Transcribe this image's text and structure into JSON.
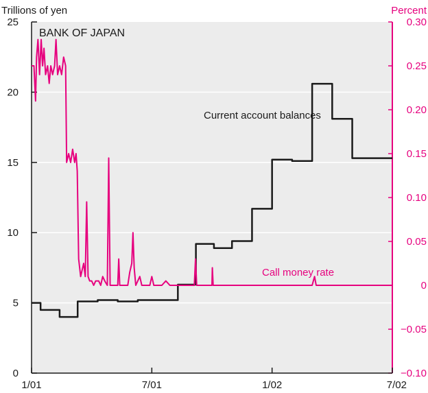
{
  "chart_data": {
    "type": "line",
    "title": "BANK OF JAPAN",
    "left_axis": {
      "label": "Trillions of yen",
      "ylim": [
        0,
        25
      ],
      "ticks": [
        "0",
        "5",
        "10",
        "15",
        "20",
        "25"
      ]
    },
    "right_axis": {
      "label": "Percent",
      "ylim": [
        -0.1,
        0.3
      ],
      "ticks": [
        "−0.10",
        "−0.05",
        "0",
        "0.05",
        "0.10",
        "0.15",
        "0.20",
        "0.25",
        "0.30"
      ]
    },
    "x_ticks": [
      "1/01",
      "7/01",
      "1/02",
      "7/02"
    ],
    "x_range_months": [
      0,
      18
    ],
    "grid": "horizontal",
    "series": [
      {
        "name": "Current account balances",
        "axis": "left",
        "color": "#1a1a1a",
        "step": true,
        "points": [
          [
            0.0,
            5.0
          ],
          [
            0.45,
            4.5
          ],
          [
            1.4,
            4.0
          ],
          [
            2.3,
            5.1
          ],
          [
            3.3,
            5.2
          ],
          [
            4.3,
            5.1
          ],
          [
            5.3,
            5.2
          ],
          [
            6.3,
            5.2
          ],
          [
            7.3,
            6.3
          ],
          [
            8.2,
            9.2
          ],
          [
            9.1,
            8.9
          ],
          [
            10.0,
            9.4
          ],
          [
            11.0,
            11.7
          ],
          [
            12.0,
            15.2
          ],
          [
            13.0,
            15.1
          ],
          [
            14.0,
            20.6
          ],
          [
            15.0,
            18.1
          ],
          [
            16.0,
            15.3
          ],
          [
            17.0,
            15.3
          ]
        ]
      },
      {
        "name": "Call money rate",
        "axis": "right",
        "color": "#e6007e",
        "step": false,
        "points": [
          [
            0.0,
            0.25
          ],
          [
            0.12,
            0.25
          ],
          [
            0.2,
            0.21
          ],
          [
            0.25,
            0.26
          ],
          [
            0.32,
            0.28
          ],
          [
            0.4,
            0.24
          ],
          [
            0.48,
            0.28
          ],
          [
            0.55,
            0.25
          ],
          [
            0.62,
            0.27
          ],
          [
            0.7,
            0.24
          ],
          [
            0.8,
            0.25
          ],
          [
            0.88,
            0.23
          ],
          [
            0.96,
            0.25
          ],
          [
            1.05,
            0.24
          ],
          [
            1.15,
            0.25
          ],
          [
            1.22,
            0.28
          ],
          [
            1.3,
            0.24
          ],
          [
            1.4,
            0.25
          ],
          [
            1.5,
            0.24
          ],
          [
            1.6,
            0.26
          ],
          [
            1.7,
            0.25
          ],
          [
            1.75,
            0.14
          ],
          [
            1.85,
            0.15
          ],
          [
            1.95,
            0.14
          ],
          [
            2.05,
            0.155
          ],
          [
            2.15,
            0.14
          ],
          [
            2.22,
            0.15
          ],
          [
            2.28,
            0.13
          ],
          [
            2.35,
            0.03
          ],
          [
            2.45,
            0.01
          ],
          [
            2.6,
            0.025
          ],
          [
            2.68,
            0.01
          ],
          [
            2.75,
            0.095
          ],
          [
            2.82,
            0.01
          ],
          [
            2.9,
            0.005
          ],
          [
            3.0,
            0.005
          ],
          [
            3.1,
            0.0
          ],
          [
            3.2,
            0.005
          ],
          [
            3.35,
            0.005
          ],
          [
            3.45,
            0.0
          ],
          [
            3.55,
            0.01
          ],
          [
            3.65,
            0.005
          ],
          [
            3.78,
            0.0
          ],
          [
            3.85,
            0.145
          ],
          [
            3.92,
            0.0
          ],
          [
            4.1,
            0.0
          ],
          [
            4.3,
            0.0
          ],
          [
            4.35,
            0.03
          ],
          [
            4.4,
            0.0
          ],
          [
            4.8,
            0.0
          ],
          [
            4.9,
            0.015
          ],
          [
            5.0,
            0.025
          ],
          [
            5.06,
            0.06
          ],
          [
            5.12,
            0.02
          ],
          [
            5.2,
            0.0
          ],
          [
            5.4,
            0.01
          ],
          [
            5.5,
            0.0
          ],
          [
            5.9,
            0.0
          ],
          [
            6.0,
            0.01
          ],
          [
            6.1,
            0.0
          ],
          [
            6.5,
            0.0
          ],
          [
            6.7,
            0.005
          ],
          [
            6.9,
            0.0
          ],
          [
            7.5,
            0.0
          ],
          [
            8.0,
            0.0
          ],
          [
            8.12,
            0.0
          ],
          [
            8.18,
            0.03
          ],
          [
            8.24,
            0.0
          ],
          [
            8.3,
            0.0
          ],
          [
            9.0,
            0.0
          ],
          [
            9.02,
            0.02
          ],
          [
            9.06,
            0.0
          ],
          [
            10.0,
            0.0
          ],
          [
            12.0,
            0.0
          ],
          [
            14.0,
            0.0
          ],
          [
            14.12,
            0.01
          ],
          [
            14.2,
            0.0
          ],
          [
            16.0,
            0.0
          ],
          [
            18.0,
            0.0
          ]
        ]
      }
    ],
    "annotations": [
      "Current account balances",
      "Call money rate"
    ]
  }
}
